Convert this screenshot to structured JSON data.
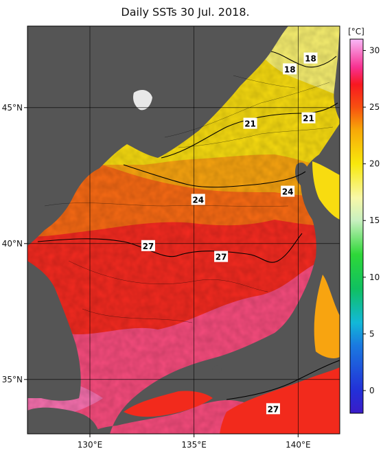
{
  "title": "Daily SSTs 30 Jul. 2018.",
  "colorbar": {
    "unit": "[°C]",
    "min": -2,
    "max": 31,
    "ticks": [
      0,
      5,
      10,
      15,
      20,
      25,
      30
    ],
    "stops": [
      {
        "value": -2,
        "color": "#3a1cc8"
      },
      {
        "value": 0,
        "color": "#2330d8"
      },
      {
        "value": 4,
        "color": "#1a7ae0"
      },
      {
        "value": 6,
        "color": "#12b8d8"
      },
      {
        "value": 9,
        "color": "#10c060"
      },
      {
        "value": 12,
        "color": "#2ed838"
      },
      {
        "value": 15,
        "color": "#c8f0c0"
      },
      {
        "value": 17,
        "color": "#f8f8a8"
      },
      {
        "value": 20,
        "color": "#f8e80c"
      },
      {
        "value": 23,
        "color": "#f8a808"
      },
      {
        "value": 25,
        "color": "#f85010"
      },
      {
        "value": 27,
        "color": "#f81820"
      },
      {
        "value": 28.5,
        "color": "#f83090"
      },
      {
        "value": 31,
        "color": "#f8b8f8"
      }
    ]
  },
  "axes": {
    "lon_ticks": [
      {
        "value": 130,
        "label": "130°E"
      },
      {
        "value": 135,
        "label": "135°E"
      },
      {
        "value": 140,
        "label": "140°E"
      }
    ],
    "lat_ticks": [
      {
        "value": 45,
        "label": "45°N"
      },
      {
        "value": 40,
        "label": "40°N"
      },
      {
        "value": 35,
        "label": "35°N"
      }
    ],
    "lon_range": [
      127,
      142
    ],
    "lat_range": [
      33,
      48
    ]
  },
  "contour_labels": [
    {
      "text": "18",
      "lon": 140.6,
      "lat": 46.8
    },
    {
      "text": "18",
      "lon": 139.6,
      "lat": 46.4
    },
    {
      "text": "21",
      "lon": 137.7,
      "lat": 44.4
    },
    {
      "text": "21",
      "lon": 140.5,
      "lat": 44.6
    },
    {
      "text": "24",
      "lon": 135.2,
      "lat": 41.6
    },
    {
      "text": "24",
      "lon": 139.5,
      "lat": 41.9
    },
    {
      "text": "27",
      "lon": 132.8,
      "lat": 39.9
    },
    {
      "text": "27",
      "lon": 136.3,
      "lat": 39.5
    },
    {
      "text": "27",
      "lon": 138.8,
      "lat": 33.9
    }
  ],
  "colors": {
    "land": "#555555",
    "border": "#000000",
    "grid": "#000000"
  }
}
